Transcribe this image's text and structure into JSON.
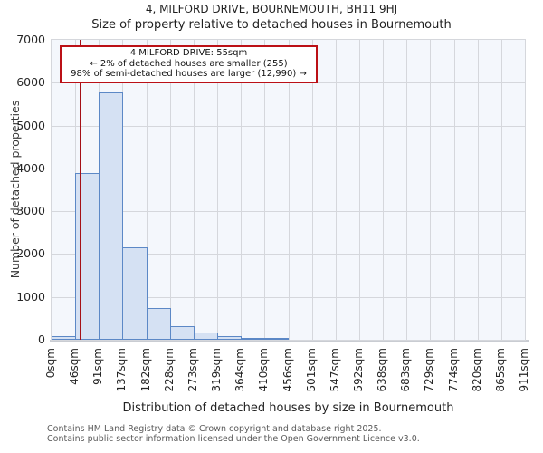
{
  "chart": {
    "title": "4, MILFORD DRIVE, BOURNEMOUTH, BH11 9HJ",
    "subtitle": "Size of property relative to detached houses in Bournemouth",
    "footer_line1": "Contains HM Land Registry data © Crown copyright and database right 2025.",
    "footer_line2": "Contains public sector information licensed under the Open Government Licence v3.0."
  },
  "chart_data": {
    "type": "bar",
    "title": "4, MILFORD DRIVE, BOURNEMOUTH, BH11 9HJ",
    "subtitle": "Size of property relative to detached houses in Bournemouth",
    "xlabel": "Distribution of detached houses by size in Bournemouth",
    "ylabel": "Number of detached properties",
    "x_tick_labels": [
      "0sqm",
      "46sqm",
      "91sqm",
      "137sqm",
      "182sqm",
      "228sqm",
      "273sqm",
      "319sqm",
      "364sqm",
      "410sqm",
      "456sqm",
      "501sqm",
      "547sqm",
      "592sqm",
      "638sqm",
      "683sqm",
      "729sqm",
      "774sqm",
      "820sqm",
      "865sqm",
      "911sqm"
    ],
    "bin_edges_sqm": [
      0,
      46,
      91,
      137,
      182,
      228,
      273,
      319,
      364,
      410,
      456,
      501,
      547,
      592,
      638,
      683,
      729,
      774,
      820,
      865,
      911
    ],
    "values": [
      95,
      3890,
      5770,
      2160,
      730,
      310,
      160,
      85,
      45,
      25,
      0,
      0,
      0,
      0,
      0,
      0,
      0,
      0,
      0,
      0
    ],
    "ylim": [
      0,
      7000
    ],
    "y_ticks": [
      0,
      1000,
      2000,
      3000,
      4000,
      5000,
      6000,
      7000
    ],
    "x_max_sqm": 911,
    "grid": true,
    "legend": "none",
    "marker": {
      "label": "4 MILFORD DRIVE",
      "value_sqm": 55,
      "color": "#a51016"
    },
    "annotation": {
      "line1": "4 MILFORD DRIVE: 55sqm",
      "line2": "← 2% of detached houses are smaller (255)",
      "line3": "98% of semi-detached houses are larger (12,990) →"
    },
    "colors": {
      "bar_fill": "#d5e1f3",
      "bar_edge": "#5c88c6",
      "marker_line": "#a51016",
      "annotation_border": "#bb1016",
      "plot_background": "#f4f7fc",
      "gridline": "#d5d7dc"
    }
  }
}
